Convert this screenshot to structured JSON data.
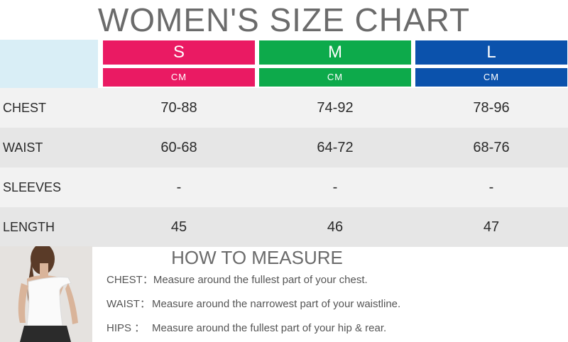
{
  "title": "WOMEN'S SIZE CHART",
  "sizes": [
    {
      "label": "S",
      "unit": "CM",
      "color": "#ea1a63"
    },
    {
      "label": "M",
      "unit": "CM",
      "color": "#0daa4b"
    },
    {
      "label": "L",
      "unit": "CM",
      "color": "#0b52ac"
    }
  ],
  "rows": [
    {
      "label": "CHEST",
      "values": [
        "70-88",
        "74-92",
        "78-96"
      ]
    },
    {
      "label": "WAIST",
      "values": [
        "60-68",
        "64-72",
        "68-76"
      ]
    },
    {
      "label": "SLEEVES",
      "values": [
        "-",
        "-",
        "-"
      ]
    },
    {
      "label": "LENGTH",
      "values": [
        "45",
        "46",
        "47"
      ]
    }
  ],
  "row_colors": [
    "#f2f2f2",
    "#e6e6e6"
  ],
  "how_to_measure": {
    "title": "HOW TO MEASURE",
    "items": [
      {
        "key": "CHEST：",
        "text": "Measure around the fullest part of your chest."
      },
      {
        "key": "WAIST：",
        "text": "Measure around the narrowest part of your waistline."
      },
      {
        "key": "HIPS ：",
        "text": "Measure around the fullest part of your hip & rear."
      }
    ]
  }
}
